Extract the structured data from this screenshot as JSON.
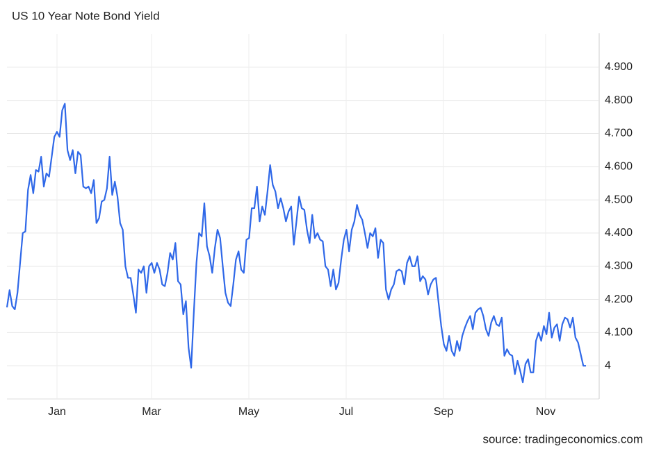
{
  "chart_data": {
    "type": "line",
    "title": "US 10 Year Note Bond Yield",
    "source": "source: tradingeconomics.com",
    "x_labels": [
      "Jan",
      "Mar",
      "May",
      "Jul",
      "Sep",
      "Nov"
    ],
    "color": "#2f68e8",
    "grid": true,
    "ylim": [
      3.9,
      5.0
    ],
    "yticks": [
      4,
      {
        "value": 4.1,
        "label": "4.100"
      },
      {
        "value": 4.2,
        "label": "4.200"
      },
      {
        "value": 4.3,
        "label": "4.300"
      },
      {
        "value": 4.4,
        "label": "4.400"
      },
      {
        "value": 4.5,
        "label": "4.500"
      },
      {
        "value": 4.6,
        "label": "4.600"
      },
      {
        "value": 4.7,
        "label": "4.700"
      },
      {
        "value": 4.8,
        "label": "4.800"
      },
      {
        "value": 4.9,
        "label": "4.900"
      }
    ],
    "values": [
      4.176,
      4.228,
      4.18,
      4.17,
      4.22,
      4.31,
      4.4,
      4.405,
      4.53,
      4.575,
      4.52,
      4.59,
      4.585,
      4.63,
      4.54,
      4.58,
      4.57,
      4.63,
      4.69,
      4.705,
      4.69,
      4.77,
      4.79,
      4.65,
      4.62,
      4.65,
      4.58,
      4.645,
      4.635,
      4.54,
      4.535,
      4.54,
      4.52,
      4.56,
      4.43,
      4.445,
      4.495,
      4.5,
      4.535,
      4.63,
      4.515,
      4.555,
      4.51,
      4.43,
      4.41,
      4.3,
      4.265,
      4.265,
      4.215,
      4.16,
      4.29,
      4.28,
      4.3,
      4.22,
      4.3,
      4.31,
      4.28,
      4.31,
      4.29,
      4.245,
      4.24,
      4.28,
      4.34,
      4.32,
      4.37,
      4.255,
      4.245,
      4.155,
      4.195,
      4.055,
      3.994,
      4.16,
      4.31,
      4.4,
      4.39,
      4.49,
      4.36,
      4.33,
      4.28,
      4.355,
      4.41,
      4.385,
      4.3,
      4.22,
      4.19,
      4.18,
      4.245,
      4.32,
      4.345,
      4.29,
      4.28,
      4.38,
      4.385,
      4.475,
      4.475,
      4.54,
      4.435,
      4.48,
      4.455,
      4.525,
      4.605,
      4.545,
      4.525,
      4.475,
      4.505,
      4.475,
      4.435,
      4.465,
      4.48,
      4.365,
      4.435,
      4.51,
      4.475,
      4.47,
      4.41,
      4.37,
      4.455,
      4.385,
      4.4,
      4.38,
      4.375,
      4.3,
      4.29,
      4.24,
      4.29,
      4.23,
      4.25,
      4.32,
      4.38,
      4.41,
      4.345,
      4.41,
      4.435,
      4.485,
      4.455,
      4.44,
      4.4,
      4.355,
      4.4,
      4.39,
      4.415,
      4.325,
      4.38,
      4.37,
      4.23,
      4.2,
      4.23,
      4.245,
      4.285,
      4.29,
      4.285,
      4.245,
      4.31,
      4.33,
      4.3,
      4.3,
      4.33,
      4.255,
      4.27,
      4.26,
      4.215,
      4.245,
      4.26,
      4.265,
      4.19,
      4.12,
      4.065,
      4.045,
      4.09,
      4.045,
      4.03,
      4.075,
      4.045,
      4.09,
      4.115,
      4.135,
      4.15,
      4.11,
      4.16,
      4.17,
      4.175,
      4.15,
      4.11,
      4.09,
      4.13,
      4.15,
      4.125,
      4.12,
      4.145,
      4.03,
      4.05,
      4.035,
      4.03,
      3.975,
      4.015,
      3.985,
      3.95,
      4.005,
      4.02,
      3.98,
      3.98,
      4.075,
      4.1,
      4.075,
      4.12,
      4.095,
      4.16,
      4.085,
      4.115,
      4.125,
      4.075,
      4.125,
      4.145,
      4.14,
      4.115,
      4.145,
      4.085,
      4.07,
      4.035,
      4.0,
      4.0
    ]
  }
}
